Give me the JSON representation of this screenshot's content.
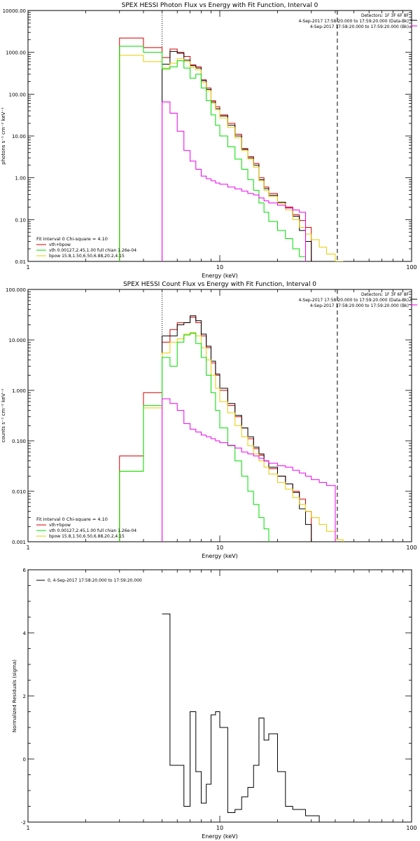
{
  "colors": {
    "data_black": "#000000",
    "total_fit": "#d40000",
    "vth": "#00dd00",
    "bpow": "#e6cc00",
    "background": "#ee00ee"
  },
  "chart_data": [
    {
      "type": "line",
      "title": "SPEX HESSI Photon Flux vs Energy with Fit Function, Interval 0",
      "xlabel": "Energy (keV)",
      "ylabel": "photons s⁻¹ cm⁻² keV⁻¹",
      "xscale": "log",
      "yscale": "log",
      "xlim": [
        1,
        100
      ],
      "ylim": [
        0.01,
        10000
      ],
      "xticks": [
        {
          "v": 1,
          "label": "1"
        },
        {
          "v": 10,
          "label": "10"
        },
        {
          "v": 100,
          "label": "100"
        }
      ],
      "yticks": [
        {
          "v": 0.01,
          "label": "0.01"
        },
        {
          "v": 0.1,
          "label": "0.10"
        },
        {
          "v": 1,
          "label": "1.00"
        },
        {
          "v": 10,
          "label": "10.00"
        },
        {
          "v": 100,
          "label": "100.00"
        },
        {
          "v": 1000,
          "label": "1000.00"
        },
        {
          "v": 10000,
          "label": "10000.00"
        }
      ],
      "header_lines": [
        "Detectors: 1F 3F 6F 8F",
        "4-Sep-2017 17:58:20.000 to 17:59:20.000 (Data-Bk)",
        "4-Sep-2017 17:58:20.000 to 17:59:20.000 (Bk)"
      ],
      "vlines": [
        {
          "x": 5.0,
          "style": "dotted"
        },
        {
          "x": 41.0,
          "style": "dashed"
        }
      ],
      "fit_label": "Fit Interval 0   Chi-square = 4.10",
      "legend": [
        {
          "label": "vth+bpow",
          "color": "total_fit"
        },
        {
          "label": "vth 0.00127,2.45,1.00  full chian 1.26e-04",
          "color": "vth"
        },
        {
          "label": "bpow 15.8,1.50,6.50,6.88,20.2,4.15",
          "color": "bpow"
        }
      ],
      "edges": [
        3,
        4,
        5,
        5.5,
        6,
        6.5,
        7,
        7.5,
        8,
        8.5,
        9,
        9.5,
        10,
        11,
        12,
        13,
        14,
        15,
        16,
        17,
        18,
        20,
        22,
        24,
        26,
        28,
        30,
        33,
        36,
        40,
        44,
        48,
        52,
        56,
        60
      ],
      "series": [
        {
          "color": "total_fit",
          "values": [
            2200,
            1300,
            750,
            1200,
            1000,
            800,
            500,
            450,
            220,
            140,
            70,
            50,
            32,
            20,
            11,
            5,
            3.2,
            2.2,
            1.0,
            0.6,
            0.42,
            0.26,
            0.2,
            0.13,
            0.095,
            0.065
          ]
        },
        {
          "color": "data_black",
          "values": [
            null,
            null,
            520,
            1050,
            950,
            650,
            480,
            420,
            210,
            130,
            65,
            45,
            30,
            18,
            10,
            4.8,
            3.0,
            2.0,
            0.9,
            0.55,
            0.38,
            0.26,
            0.19,
            0.12,
            0.055,
            0.03
          ]
        },
        {
          "color": "bpow",
          "values": [
            850,
            600,
            420,
            550,
            700,
            600,
            430,
            380,
            190,
            120,
            60,
            42,
            27,
            16,
            9,
            4.5,
            2.8,
            1.8,
            0.85,
            0.5,
            0.36,
            0.24,
            0.17,
            0.1,
            0.065,
            0.045,
            0.033,
            0.022,
            0.015,
            0.01
          ]
        },
        {
          "color": "vth",
          "values": [
            1400,
            1000,
            400,
            450,
            630,
            420,
            240,
            300,
            140,
            70,
            32,
            18,
            10,
            5.5,
            2.8,
            1.6,
            0.9,
            0.5,
            0.25,
            0.15,
            0.09,
            0.055,
            0.035,
            0.02,
            0.013
          ]
        },
        {
          "color": "background",
          "start_index": 2,
          "values": [
            65,
            35,
            13,
            4.5,
            2.5,
            1.6,
            1.1,
            0.95,
            0.85,
            0.75,
            0.7,
            0.6,
            0.54,
            0.48,
            0.42,
            0.39,
            0.33,
            0.28,
            0.25,
            0.22,
            0.19,
            0.17,
            0.15
          ]
        }
      ]
    },
    {
      "type": "line",
      "title": "SPEX HESSI Count Flux vs Energy with Fit Function, Interval 0",
      "xlabel": "Energy (keV)",
      "ylabel": "counts s⁻¹ cm⁻² keV⁻¹",
      "xscale": "log",
      "yscale": "log",
      "xlim": [
        1,
        100
      ],
      "ylim": [
        0.001,
        100
      ],
      "xticks": [
        {
          "v": 1,
          "label": "1"
        },
        {
          "v": 10,
          "label": "10"
        },
        {
          "v": 100,
          "label": "100"
        }
      ],
      "yticks": [
        {
          "v": 0.001,
          "label": "0.001"
        },
        {
          "v": 0.01,
          "label": "0.010"
        },
        {
          "v": 0.1,
          "label": "0.100"
        },
        {
          "v": 1,
          "label": "1.000"
        },
        {
          "v": 10,
          "label": "10.000"
        },
        {
          "v": 100,
          "label": "100.000"
        }
      ],
      "header_lines": [
        "Detectors: 1F 3F 6F 8F",
        "4-Sep-2017 17:58:20.000 to 17:59:20.000 (Data-Bk)",
        "4-Sep-2017 17:58:20.000 to 17:59:20.000 (Bk)"
      ],
      "vlines": [
        {
          "x": 5.0,
          "style": "dotted"
        },
        {
          "x": 41.0,
          "style": "dashed"
        }
      ],
      "fit_label": "Fit Interval 0   Chi-square = 4.10",
      "legend": [
        {
          "label": "vth+bpow",
          "color": "total_fit"
        },
        {
          "label": "vth 0.00127,2.45,1.00  full chian 1.26e-04",
          "color": "vth"
        },
        {
          "label": "bpow 15.8,1.50,6.50,6.88,20.2,4.15",
          "color": "bpow"
        }
      ],
      "edges": [
        3,
        4,
        5,
        5.5,
        6,
        6.5,
        7,
        7.5,
        8,
        8.5,
        9,
        9.5,
        10,
        11,
        12,
        13,
        14,
        15,
        16,
        17,
        18,
        20,
        22,
        24,
        26,
        28,
        30,
        33,
        36,
        40,
        44,
        48,
        52,
        56,
        60
      ],
      "series": [
        {
          "color": "total_fit",
          "values": [
            0.05,
            0.9,
            9.0,
            16,
            22,
            22,
            28,
            22,
            12,
            7.0,
            3.5,
            2.0,
            1.0,
            0.5,
            0.3,
            0.18,
            0.11,
            0.07,
            0.052,
            0.04,
            0.028,
            0.02,
            0.014,
            0.01,
            0.007,
            0.004
          ]
        },
        {
          "color": "data_black",
          "values": [
            null,
            null,
            12,
            12,
            20,
            22,
            30,
            24,
            13,
            7.5,
            3.8,
            2.1,
            1.1,
            0.55,
            0.32,
            0.18,
            0.12,
            0.075,
            0.055,
            0.04,
            0.03,
            0.02,
            0.014,
            0.0095,
            0.0045,
            0.0022
          ]
        },
        {
          "color": "bpow",
          "values": [
            0.025,
            0.45,
            5.5,
            9.0,
            10.5,
            13,
            14,
            12,
            7.0,
            4.0,
            2.0,
            1.1,
            0.6,
            0.36,
            0.2,
            0.12,
            0.08,
            0.055,
            0.04,
            0.03,
            0.022,
            0.015,
            0.011,
            0.0075,
            0.0055,
            0.004,
            0.003,
            0.0022,
            0.0016,
            0.0011
          ]
        },
        {
          "color": "vth",
          "values": [
            0.025,
            0.5,
            4.5,
            3.0,
            9.0,
            12.5,
            13.5,
            8.5,
            4.5,
            2.0,
            0.9,
            0.4,
            0.18,
            0.08,
            0.04,
            0.02,
            0.01,
            0.0055,
            0.003,
            0.0018
          ]
        },
        {
          "color": "background",
          "start_index": 2,
          "values": [
            0.68,
            0.55,
            0.4,
            0.22,
            0.17,
            0.15,
            0.13,
            0.12,
            0.11,
            0.1,
            0.092,
            0.082,
            0.072,
            0.06,
            0.055,
            0.05,
            0.045,
            0.04,
            0.036,
            0.032,
            0.03,
            0.026,
            0.023,
            0.02,
            0.017,
            0.015,
            0.013
          ]
        }
      ]
    },
    {
      "type": "line",
      "title": "",
      "xlabel": "Energy (keV)",
      "ylabel": "Normalized Residuals (sigma)",
      "xscale": "log",
      "yscale": "linear",
      "xlim": [
        1,
        100
      ],
      "ylim": [
        -2,
        6
      ],
      "xticks": [
        {
          "v": 1,
          "label": "1"
        },
        {
          "v": 10,
          "label": "10"
        },
        {
          "v": 100,
          "label": "100"
        }
      ],
      "yticks": [
        {
          "v": -2,
          "label": "-2"
        },
        {
          "v": 0,
          "label": "0"
        },
        {
          "v": 2,
          "label": "2"
        },
        {
          "v": 4,
          "label": "4"
        },
        {
          "v": 6,
          "label": "6"
        }
      ],
      "legend": [
        {
          "label": "0,  4-Sep-2017 17:58:20.000 to 17:59:20.000",
          "color": "data_black"
        }
      ],
      "edges": [
        5,
        5.5,
        6,
        6.5,
        7,
        7.5,
        8,
        8.5,
        9,
        9.5,
        10,
        11,
        12,
        13,
        14,
        15,
        16,
        17,
        18,
        20,
        22,
        24,
        26,
        28,
        30,
        33,
        36,
        40,
        44
      ],
      "series": [
        {
          "color": "data_black",
          "values": [
            4.6,
            -0.2,
            -0.2,
            -1.5,
            1.5,
            -0.4,
            -1.4,
            -0.8,
            1.4,
            1.5,
            1.0,
            -1.7,
            -1.6,
            -1.2,
            -0.9,
            -0.2,
            1.3,
            0.6,
            0.8,
            -0.4,
            -1.5,
            -1.6,
            -1.6,
            -1.8,
            -1.8,
            -2.0,
            -2.0,
            -2.0
          ]
        }
      ]
    }
  ]
}
